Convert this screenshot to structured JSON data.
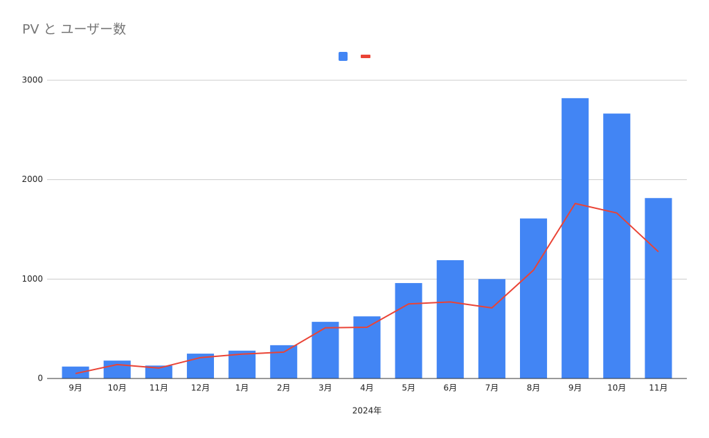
{
  "chart_data": {
    "type": "combo",
    "title": "PV と ユーザー数",
    "x_label": "2024年",
    "categories": [
      "9月",
      "10月",
      "11月",
      "12月",
      "1月",
      "2月",
      "3月",
      "4月",
      "5月",
      "6月",
      "7月",
      "8月",
      "9月",
      "10月",
      "11月"
    ],
    "series": [
      {
        "type": "bar",
        "color": "#4285f4",
        "values": [
          120,
          180,
          130,
          250,
          280,
          335,
          570,
          625,
          960,
          1190,
          1000,
          1610,
          2820,
          2665,
          1815
        ]
      },
      {
        "type": "line",
        "color": "#ea4335",
        "values": [
          50,
          140,
          105,
          210,
          245,
          265,
          510,
          515,
          750,
          770,
          710,
          1090,
          1760,
          1665,
          1275
        ]
      }
    ],
    "ylim": [
      0,
      3000
    ],
    "yticks": [
      0,
      1000,
      2000,
      3000
    ],
    "grid": true,
    "legend": "top"
  }
}
